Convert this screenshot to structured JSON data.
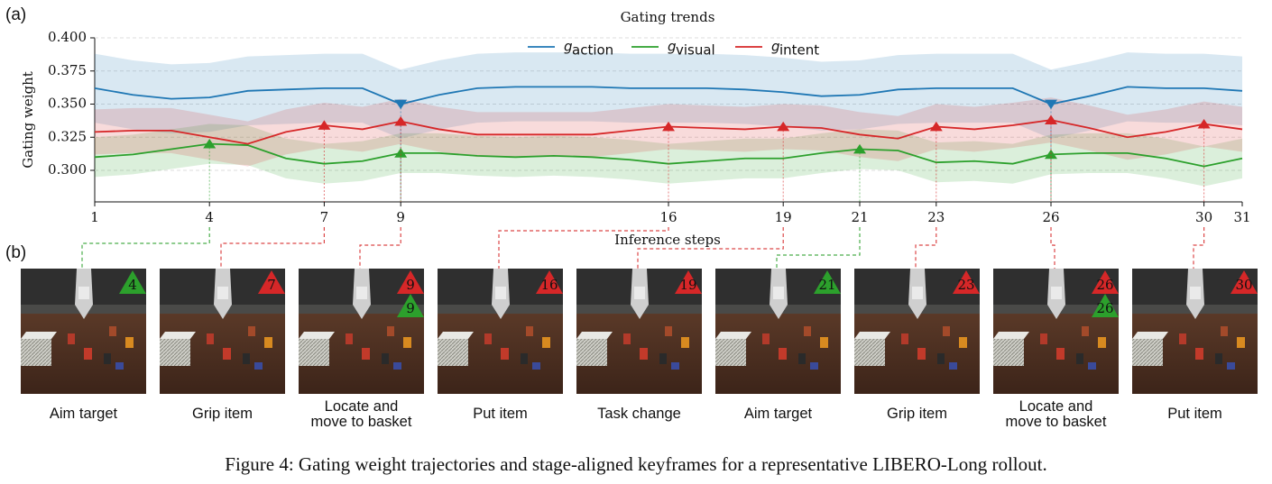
{
  "chart_data": {
    "type": "line",
    "title": "Gating trends",
    "xlabel": "Inference steps",
    "ylabel": "Gating weight",
    "x": [
      1,
      2,
      3,
      4,
      5,
      6,
      7,
      8,
      9,
      10,
      11,
      12,
      13,
      14,
      15,
      16,
      17,
      18,
      19,
      20,
      21,
      22,
      23,
      24,
      25,
      26,
      27,
      28,
      29,
      30,
      31
    ],
    "xlim": [
      1,
      31
    ],
    "xticks": [
      1,
      4,
      7,
      9,
      16,
      19,
      21,
      23,
      26,
      30,
      31
    ],
    "ylim": [
      0.2762,
      0.4
    ],
    "yticks": [
      {
        "value": 0.3,
        "label": "0.300"
      },
      0.325,
      {
        "value": 0.35,
        "label": "0.350"
      },
      0.375,
      {
        "value": 0.4,
        "label": "0.400"
      }
    ],
    "grid": true,
    "legend_symbol": "g",
    "legend": "upper center",
    "series": [
      {
        "name": "action",
        "color": "#1f77b4",
        "band": 0.026,
        "marker": "down",
        "markers": [
          9,
          26
        ],
        "values": [
          0.362,
          0.357,
          0.354,
          0.355,
          0.36,
          0.361,
          0.362,
          0.362,
          0.35,
          0.357,
          0.362,
          0.363,
          0.363,
          0.363,
          0.362,
          0.362,
          0.362,
          0.361,
          0.359,
          0.356,
          0.357,
          0.361,
          0.362,
          0.362,
          0.362,
          0.35,
          0.356,
          0.363,
          0.362,
          0.362,
          0.36
        ]
      },
      {
        "name": "visual",
        "color": "#2ca02c",
        "band": 0.015,
        "marker": "up",
        "markers": [
          4,
          9,
          21,
          26
        ],
        "values": [
          0.31,
          0.312,
          0.316,
          0.32,
          0.319,
          0.309,
          0.305,
          0.307,
          0.313,
          0.313,
          0.311,
          0.31,
          0.311,
          0.31,
          0.308,
          0.305,
          0.307,
          0.309,
          0.309,
          0.313,
          0.316,
          0.315,
          0.306,
          0.307,
          0.305,
          0.312,
          0.313,
          0.313,
          0.309,
          0.303,
          0.309
        ]
      },
      {
        "name": "intent",
        "color": "#d62728",
        "band": 0.017,
        "marker": "up",
        "markers": [
          7,
          9,
          16,
          19,
          23,
          26,
          30
        ],
        "values": [
          0.329,
          0.33,
          0.33,
          0.325,
          0.32,
          0.329,
          0.334,
          0.331,
          0.337,
          0.331,
          0.327,
          0.327,
          0.327,
          0.327,
          0.33,
          0.333,
          0.332,
          0.331,
          0.333,
          0.332,
          0.327,
          0.324,
          0.333,
          0.331,
          0.334,
          0.338,
          0.332,
          0.325,
          0.329,
          0.335,
          0.331
        ]
      }
    ]
  },
  "panel_labels": [
    "(a)",
    "(b)"
  ],
  "keyframes": [
    {
      "label": "Aim target",
      "badges": [
        {
          "step": 4,
          "series": 1
        }
      ]
    },
    {
      "label": "Grip item",
      "badges": [
        {
          "step": 7,
          "series": 2
        }
      ]
    },
    {
      "label": "Locate and\nmove to basket",
      "badges": [
        {
          "step": 9,
          "series": 2
        },
        {
          "step": 9,
          "series": 1
        }
      ]
    },
    {
      "label": "Put item",
      "badges": [
        {
          "step": 16,
          "series": 2
        }
      ]
    },
    {
      "label": "Task change",
      "badges": [
        {
          "step": 19,
          "series": 2
        }
      ]
    },
    {
      "label": "Aim target",
      "badges": [
        {
          "step": 21,
          "series": 1
        }
      ]
    },
    {
      "label": "Grip item",
      "badges": [
        {
          "step": 23,
          "series": 2
        }
      ]
    },
    {
      "label": "Locate and\nmove to basket",
      "badges": [
        {
          "step": 26,
          "series": 2
        },
        {
          "step": 26,
          "series": 1
        }
      ]
    },
    {
      "label": "Put item",
      "badges": [
        {
          "step": 30,
          "series": 2
        }
      ]
    }
  ],
  "caption": "Figure 4: Gating weight trajectories and stage-aligned keyframes for a representative LIBERO-Long rollout."
}
